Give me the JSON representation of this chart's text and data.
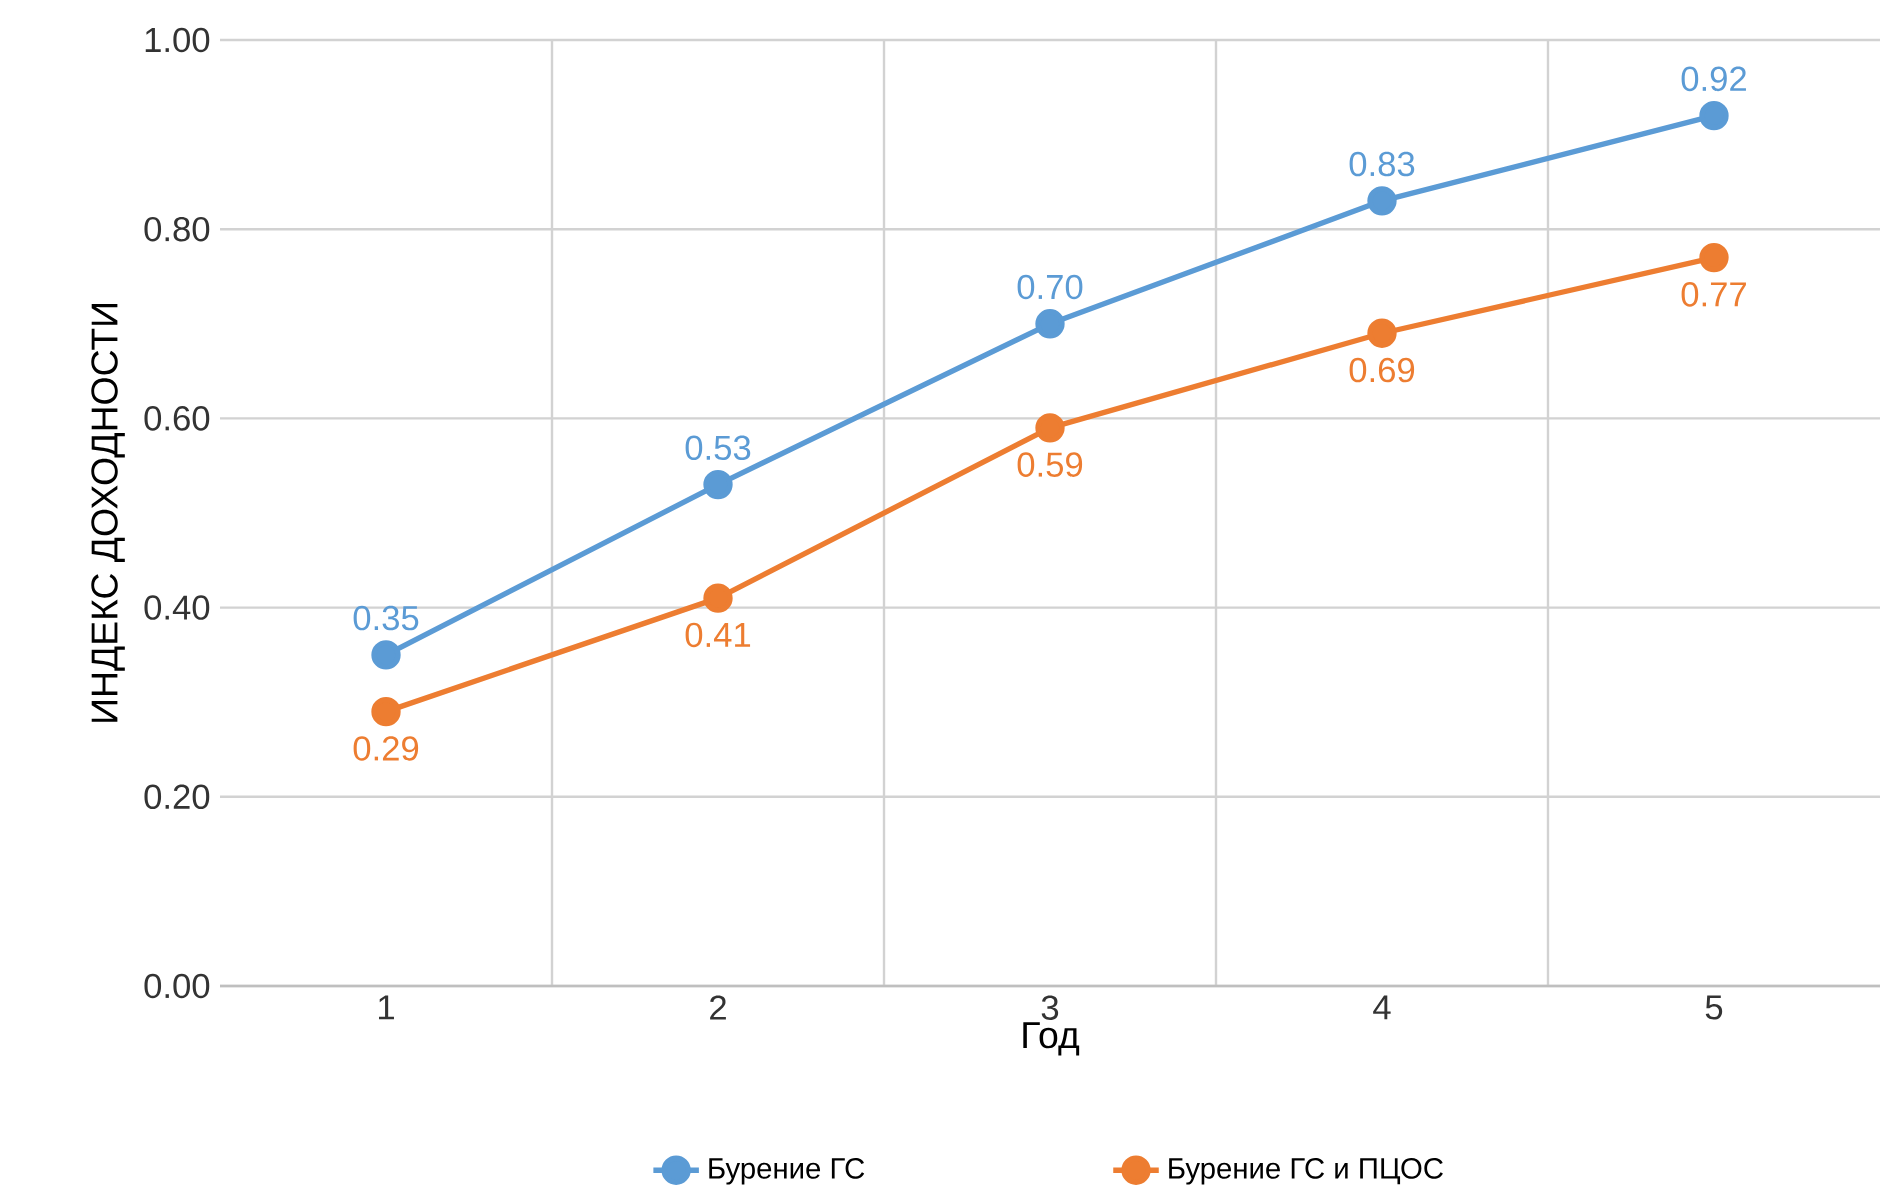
{
  "chart_data": {
    "type": "line",
    "xlabel": "Год",
    "ylabel": "ИНДЕКС ДОХОДНОСТИ",
    "categories": [
      "1",
      "2",
      "3",
      "4",
      "5"
    ],
    "series": [
      {
        "name": "Бурение ГС",
        "color": "#5b9bd5",
        "values": [
          0.35,
          0.53,
          0.7,
          0.83,
          0.92
        ],
        "value_labels": [
          "0.35",
          "0.53",
          "0.70",
          "0.83",
          "0.92"
        ]
      },
      {
        "name": "Бурение ГС и ПЦОС",
        "color": "#ed7d31",
        "values": [
          0.29,
          0.41,
          0.59,
          0.69,
          0.77
        ],
        "value_labels": [
          "0.29",
          "0.41",
          "0.59",
          "0.69",
          "0.77"
        ]
      }
    ],
    "ylim": [
      0,
      1
    ],
    "yticks": [
      {
        "value": 0,
        "label": "0.00"
      },
      {
        "value": 0.2,
        "label": "0.20"
      },
      {
        "value": 0.4,
        "label": "0.40"
      },
      {
        "value": 0.6,
        "label": "0.60"
      },
      {
        "value": 0.8,
        "label": "0.80"
      },
      {
        "value": 1,
        "label": "1.00"
      }
    ],
    "grid": true,
    "legend": "bottom",
    "marker": "circle",
    "line_style": "solid"
  }
}
